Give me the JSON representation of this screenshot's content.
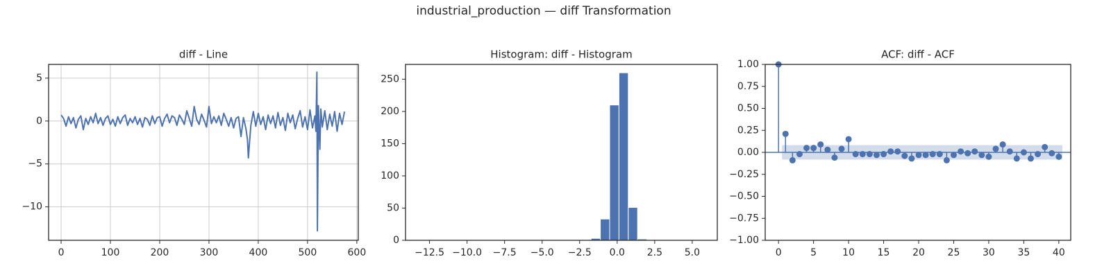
{
  "title": "industrial_production — diff Transformation",
  "chart_data": [
    {
      "type": "line",
      "title": "diff - Line",
      "color": "#4c72b0",
      "grid": true,
      "x": [
        0,
        5,
        10,
        15,
        20,
        25,
        30,
        35,
        40,
        45,
        50,
        55,
        60,
        65,
        70,
        75,
        80,
        85,
        90,
        95,
        100,
        105,
        110,
        115,
        120,
        125,
        130,
        135,
        140,
        145,
        150,
        155,
        160,
        165,
        170,
        175,
        180,
        185,
        190,
        195,
        200,
        205,
        210,
        215,
        220,
        225,
        230,
        235,
        240,
        245,
        250,
        255,
        260,
        265,
        270,
        275,
        280,
        285,
        290,
        295,
        300,
        305,
        310,
        315,
        320,
        325,
        330,
        335,
        340,
        345,
        350,
        355,
        360,
        365,
        370,
        375,
        378,
        380,
        382,
        385,
        390,
        395,
        400,
        405,
        410,
        415,
        420,
        425,
        430,
        435,
        440,
        445,
        450,
        455,
        460,
        465,
        470,
        475,
        480,
        485,
        490,
        495,
        500,
        505,
        510,
        515,
        517,
        519,
        520,
        522,
        525,
        527,
        530,
        535,
        540,
        545,
        550,
        555,
        560,
        565,
        570,
        575
      ],
      "values": [
        0.7,
        0.3,
        -0.6,
        0.5,
        -0.3,
        0.4,
        -0.8,
        0.2,
        0.6,
        -1.0,
        0.3,
        -0.4,
        0.5,
        -0.2,
        0.9,
        -0.3,
        0.4,
        -0.5,
        0.3,
        0.6,
        -0.4,
        0.2,
        -0.6,
        0.5,
        -0.3,
        0.4,
        0.7,
        -0.5,
        0.3,
        -0.2,
        0.5,
        -0.4,
        0.3,
        -0.7,
        0.4,
        0.2,
        -0.5,
        0.6,
        -0.3,
        0.4,
        0.5,
        -0.6,
        0.3,
        0.8,
        -0.2,
        0.6,
        0.4,
        -0.5,
        0.7,
        0.2,
        -0.4,
        1.2,
        0.3,
        -0.6,
        1.7,
        0.2,
        -0.4,
        0.8,
        0.1,
        -0.7,
        1.7,
        -0.3,
        0.5,
        -0.2,
        0.6,
        -0.5,
        0.9,
        0.2,
        -0.6,
        0.4,
        -0.8,
        0.3,
        0.5,
        -1.8,
        0.4,
        -0.9,
        -2.1,
        -4.3,
        -2.7,
        -0.5,
        1.1,
        -0.6,
        0.9,
        -0.4,
        0.5,
        -1.0,
        0.7,
        -0.3,
        0.6,
        -0.8,
        1.0,
        -0.5,
        0.4,
        -1.1,
        0.9,
        -0.2,
        0.7,
        -0.9,
        0.3,
        1.2,
        -0.7,
        0.5,
        -1.0,
        1.3,
        -0.8,
        0.6,
        -1.2,
        5.7,
        -12.8,
        1.8,
        -3.3,
        1.4,
        -0.7,
        1.2,
        -1.0,
        0.8,
        -0.6,
        1.1,
        -1.2,
        0.9,
        -0.4,
        1.1
      ],
      "xlim": [
        -25.4,
        603
      ],
      "xticks": [
        0,
        100,
        200,
        300,
        400,
        500,
        600
      ],
      "ylim": [
        -13.9,
        6.6
      ],
      "yticks": [
        {
          "value": -10,
          "label": "−10"
        },
        {
          "value": -5,
          "label": "−5"
        },
        0,
        5
      ]
    },
    {
      "type": "histogram",
      "title": "Histogram: diff - Histogram",
      "color": "#4c72b0",
      "grid": false,
      "bins": [
        -12.9,
        -12.28,
        -11.66,
        -11.04,
        -10.42,
        -9.8,
        -9.18,
        -8.56,
        -7.94,
        -7.32,
        -6.7,
        -6.08,
        -5.46,
        -4.84,
        -4.22,
        -3.6,
        -2.98,
        -2.36,
        -1.74,
        -1.12,
        -0.5,
        0.12,
        0.74,
        1.36,
        1.98,
        2.6,
        3.22,
        3.84,
        4.46,
        5.08,
        5.7
      ],
      "counts": [
        1,
        0,
        0,
        0,
        0,
        0,
        0,
        0,
        0,
        0,
        0,
        0,
        0,
        1,
        0,
        1,
        0,
        0,
        3,
        33,
        210,
        260,
        51,
        2,
        0,
        0,
        0,
        0,
        0,
        1
      ],
      "xlim": [
        -14.1,
        6.67
      ],
      "xticks": [
        {
          "value": -12.5,
          "label": "−12.5"
        },
        {
          "value": -10,
          "label": "−10.0"
        },
        {
          "value": -7.5,
          "label": "−7.5"
        },
        {
          "value": -5,
          "label": "−5.0"
        },
        {
          "value": -2.5,
          "label": "−2.5"
        },
        {
          "value": 0,
          "label": "0.0"
        },
        2.5,
        {
          "value": 5,
          "label": "5.0"
        }
      ],
      "ylim": [
        0,
        273
      ],
      "yticks": [
        0,
        50,
        100,
        150,
        200,
        250
      ]
    },
    {
      "type": "acf",
      "title": "ACF: diff - ACF",
      "color": "#4c72b0",
      "grid": false,
      "confidence": 0.082,
      "x": [
        0,
        1,
        2,
        3,
        4,
        5,
        6,
        7,
        8,
        9,
        10,
        11,
        12,
        13,
        14,
        15,
        16,
        17,
        18,
        19,
        20,
        21,
        22,
        23,
        24,
        25,
        26,
        27,
        28,
        29,
        30,
        31,
        32,
        33,
        34,
        35,
        36,
        37,
        38,
        39,
        40
      ],
      "values": [
        1,
        0.21,
        -0.09,
        -0.02,
        0.05,
        0.05,
        0.09,
        0.03,
        -0.06,
        0.04,
        0.15,
        -0.02,
        -0.02,
        -0.02,
        -0.03,
        -0.02,
        0.01,
        0.01,
        -0.04,
        -0.07,
        -0.03,
        -0.03,
        -0.02,
        -0.02,
        -0.09,
        -0.03,
        0.01,
        -0.01,
        0.01,
        -0.03,
        -0.05,
        0.04,
        0.09,
        0.01,
        -0.07,
        0,
        -0.07,
        -0.02,
        0.06,
        -0.01,
        -0.05
      ],
      "xlim": [
        -1.9,
        41.7
      ],
      "xticks": [
        0,
        5,
        10,
        15,
        20,
        25,
        30,
        35,
        40
      ],
      "ylim": [
        -1,
        1
      ],
      "yticks": [
        {
          "value": -1,
          "label": "−1.00"
        },
        {
          "value": -0.75,
          "label": "−0.75"
        },
        {
          "value": -0.5,
          "label": "−0.50"
        },
        {
          "value": -0.25,
          "label": "−0.25"
        },
        {
          "value": 0,
          "label": "0.00"
        },
        {
          "value": 0.25,
          "label": "0.25"
        },
        {
          "value": 0.5,
          "label": "0.50"
        },
        {
          "value": 0.75,
          "label": "0.75"
        },
        {
          "value": 1,
          "label": "1.00"
        }
      ]
    }
  ]
}
